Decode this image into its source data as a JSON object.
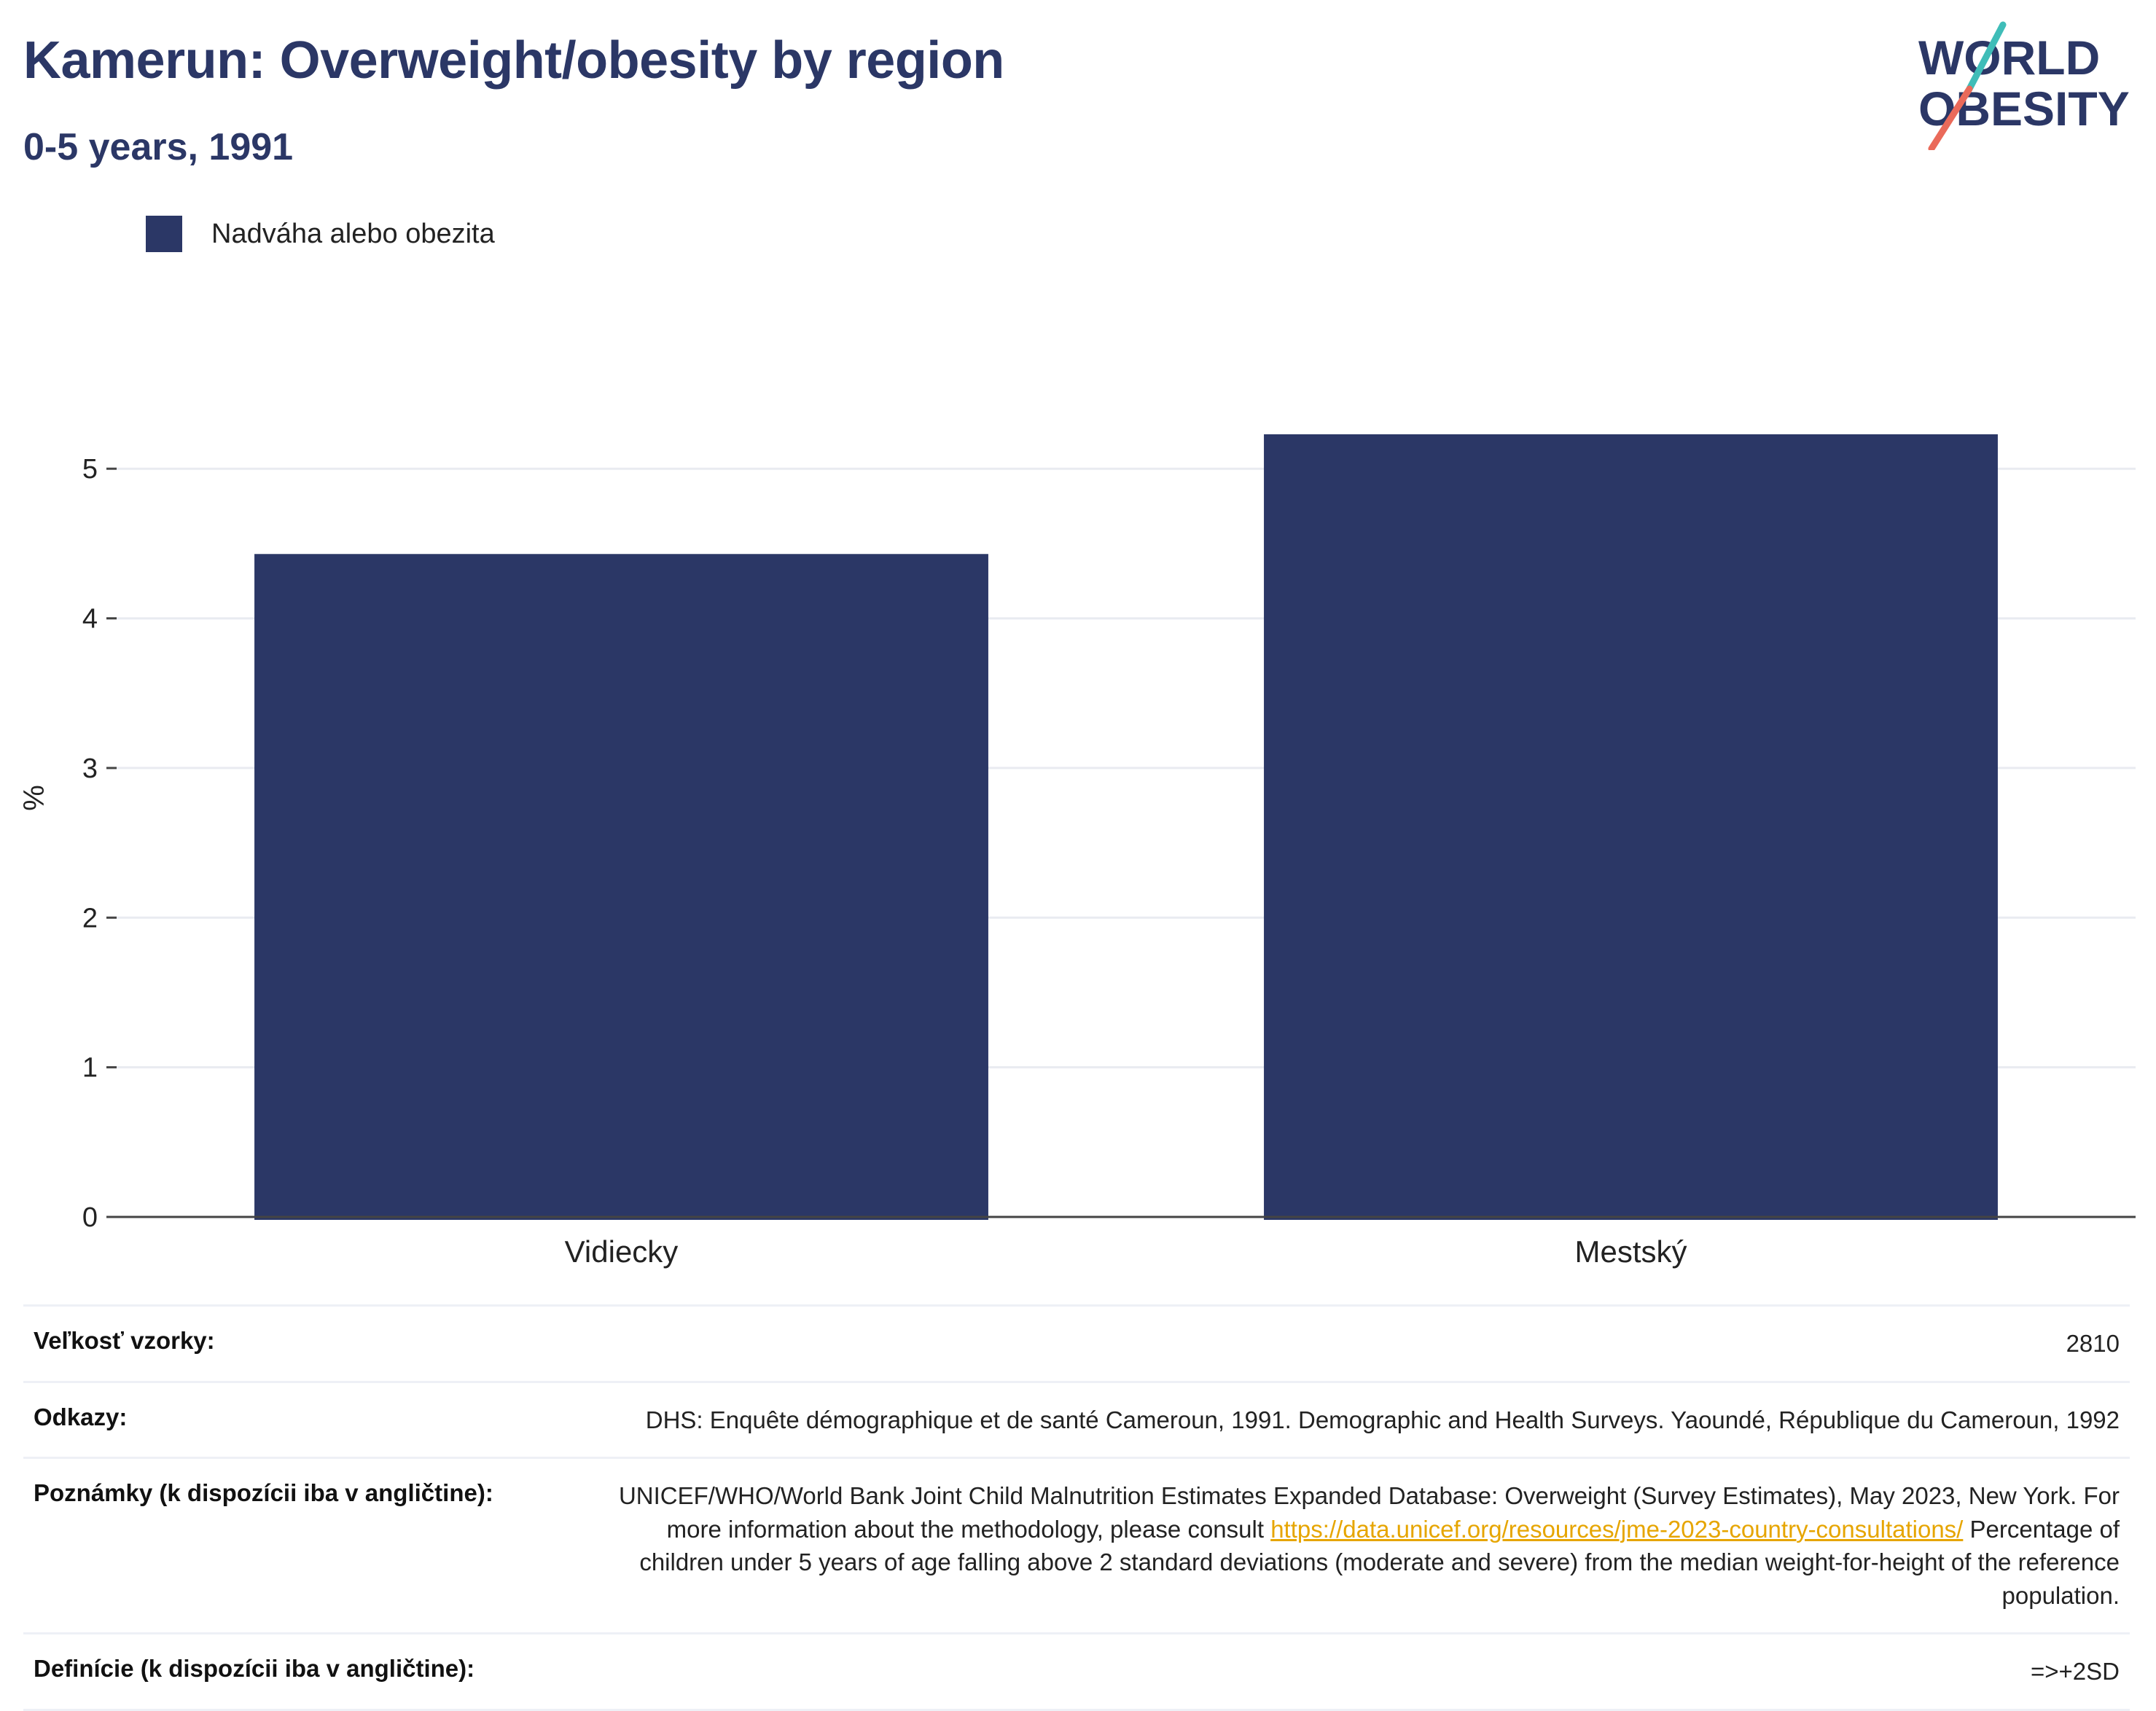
{
  "header": {
    "title": "Kamerun: Overweight/obesity by region",
    "subtitle": "0-5 years, 1991"
  },
  "logo": {
    "line1": "WORLD",
    "line2": "OBESITY",
    "colors": {
      "text": "#2b3766",
      "slash_top": "#3fbdb8",
      "slash_bottom": "#ea6a5a"
    }
  },
  "legend": {
    "label": "Nadváha alebo obezita",
    "color": "#2b3766"
  },
  "chart_data": {
    "type": "bar",
    "categories": [
      "Vidiecky",
      "Mestský"
    ],
    "series": [
      {
        "name": "Nadváha alebo obezita",
        "values": [
          4.43,
          5.23
        ],
        "color": "#2b3766"
      }
    ],
    "ylabel": "%",
    "xlabel": "",
    "ylim": [
      0,
      5.6
    ],
    "yticks": [
      0,
      1,
      2,
      3,
      4,
      5
    ],
    "grid": true,
    "legend_position": "top-left"
  },
  "meta": {
    "sample_size": {
      "label": "Veľkosť vzorky:",
      "value": "2810"
    },
    "references": {
      "label": "Odkazy:",
      "value": "DHS: Enquête démographique et de santé Cameroun, 1991. Demographic and Health Surveys. Yaoundé, République du Cameroun, 1992"
    },
    "notes": {
      "label": "Poznámky (k dispozícii iba v angličtine):",
      "text_before": "UNICEF/WHO/World Bank Joint Child Malnutrition Estimates Expanded Database: Overweight (Survey Estimates), May 2023, New York. For more information about the methodology, please consult ",
      "link": "https://data.unicef.org/resources/jme-2023-country-consultations/",
      "text_after": " Percentage of children under 5 years of age falling above 2 standard deviations (moderate and severe) from the median weight-for-height of the reference population."
    },
    "definitions": {
      "label": "Definície (k dispozícii iba v angličtine):",
      "value": "=>+2SD"
    }
  }
}
